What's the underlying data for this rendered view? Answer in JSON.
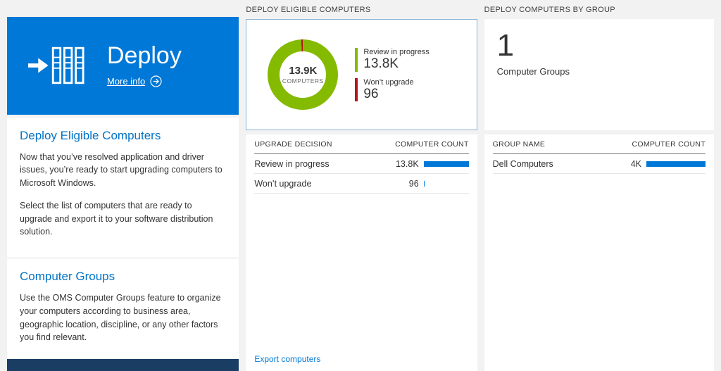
{
  "colors": {
    "tile_blue": "#0078d7",
    "heading_blue": "#0072c6",
    "link_blue": "#0078d7",
    "bar_blue": "#0078d7",
    "green": "#84ba00",
    "red": "#b5151b",
    "footer_navy": "#1a3e63",
    "card_border_blue": "#84b3d8"
  },
  "left": {
    "tile": {
      "title": "Deploy",
      "more_info_label": "More info"
    },
    "section1": {
      "heading": "Deploy Eligible Computers",
      "p1": "Now that you’ve resolved application and driver issues, you’re ready to start upgrading computers to Microsoft Windows.",
      "p2": "Select the list of computers that are ready to upgrade and export it to your software distribution solution."
    },
    "section2": {
      "heading": "Computer Groups",
      "p1": "Use the OMS Computer Groups feature to organize your computers according to business area, geographic location, discipline, or any other factors you find relevant."
    }
  },
  "middle": {
    "header": "DEPLOY ELIGIBLE COMPUTERS",
    "donut": {
      "center_value": "13.9K",
      "center_label": "COMPUTERS"
    },
    "legend": [
      {
        "label": "Review in progress",
        "value": "13.8K"
      },
      {
        "label": "Won’t upgrade",
        "value": "96"
      }
    ],
    "table": {
      "col1": "UPGRADE DECISION",
      "col2": "COMPUTER COUNT",
      "rows": [
        {
          "label": "Review in progress",
          "value": "13.8K",
          "bar_pct": 100
        },
        {
          "label": "Won’t upgrade",
          "value": "96",
          "bar_pct": 2
        }
      ]
    },
    "export_link": "Export computers"
  },
  "right": {
    "header": "DEPLOY COMPUTERS BY GROUP",
    "summary": {
      "count": "1",
      "label": "Computer Groups"
    },
    "table": {
      "col1": "GROUP NAME",
      "col2": "COMPUTER COUNT",
      "rows": [
        {
          "label": "Dell Computers",
          "value": "4K",
          "bar_pct": 100
        }
      ]
    }
  },
  "chart_data": {
    "type": "pie",
    "title": "Deploy Eligible Computers",
    "center_total_label": "13.9K COMPUTERS",
    "total": 13896,
    "segments": [
      {
        "label": "Review in progress",
        "value": 13800,
        "color": "#84ba00"
      },
      {
        "label": "Won’t upgrade",
        "value": 96,
        "color": "#b5151b"
      }
    ],
    "legend_position": "right"
  }
}
